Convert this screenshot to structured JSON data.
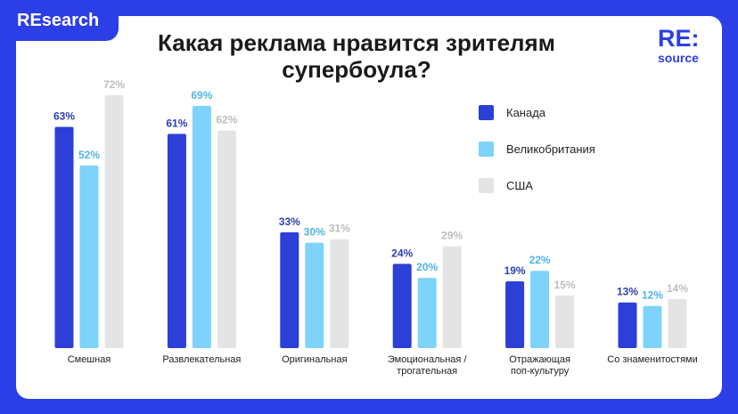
{
  "badge": "REsearch",
  "logo": {
    "top": "RE:",
    "bottom": "source"
  },
  "chart_data": {
    "type": "bar",
    "title": "Какая реклама нравится зрителям\nсупербоула?",
    "categories": [
      "Смешная",
      "Развлекательная",
      "Оригинальная",
      "Эмоциональная /\nтрогательная",
      "Отражающая\nпоп-культуру",
      "Со знаменитостями"
    ],
    "series": [
      {
        "name": "Канада",
        "color": "#2c3fd6",
        "label_color": "#2c3fb0",
        "values": [
          63,
          61,
          33,
          24,
          19,
          13
        ],
        "value_labels": [
          "63%",
          "61%",
          "33%",
          "24%",
          "19%",
          "13%"
        ]
      },
      {
        "name": "Великобритания",
        "color": "#7dd3fa",
        "label_color": "#4fb3e6",
        "values": [
          52,
          69,
          30,
          20,
          22,
          12
        ],
        "value_labels": [
          "52%",
          "69%",
          "30%",
          "20%",
          "22%",
          "12%"
        ]
      },
      {
        "name": "США",
        "color": "#e4e4e4",
        "label_color": "#bdbdbd",
        "values": [
          72,
          62,
          31,
          29,
          15,
          14
        ],
        "value_labels": [
          "72%",
          "62%",
          "31%",
          "29%",
          "15%",
          "14%"
        ]
      }
    ]
  }
}
